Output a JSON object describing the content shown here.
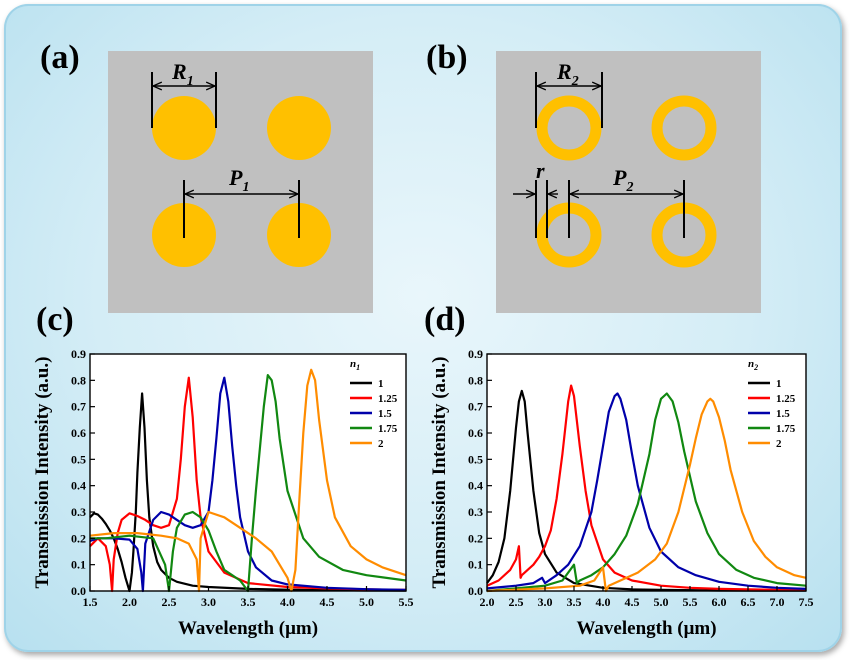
{
  "panels": {
    "a": {
      "label": "(a)",
      "radius_label": "R",
      "radius_sub": "1",
      "period_label": "P",
      "period_sub": "1"
    },
    "b": {
      "label": "(b)",
      "radius_label": "R",
      "radius_sub": "2",
      "period_label": "P",
      "period_sub": "2",
      "width_label": "r"
    },
    "c": {
      "label": "(c)"
    },
    "d": {
      "label": "(d)"
    }
  },
  "colors": {
    "substrate": "#c0c0c0",
    "metal": "#ffc000"
  },
  "chart_data": [
    {
      "id": "c",
      "type": "line",
      "xlabel": "Wavelength (μm)",
      "ylabel": "Transmission Intensity (a.u.)",
      "xlim": [
        1.5,
        5.5
      ],
      "ylim": [
        0,
        0.9
      ],
      "xticks": [
        "1.5",
        "2.0",
        "2.5",
        "3.0",
        "3.5",
        "4.0",
        "4.5",
        "5.0",
        "5.5"
      ],
      "yticks": [
        "0.0",
        "0.1",
        "0.2",
        "0.3",
        "0.4",
        "0.5",
        "0.6",
        "0.7",
        "0.8",
        "0.9"
      ],
      "legend_title": "n",
      "legend_title_sub": "1",
      "legend_position": "top-right",
      "series": [
        {
          "name": "1",
          "color": "#000000",
          "x": [
            1.5,
            1.55,
            1.6,
            1.65,
            1.7,
            1.75,
            1.8,
            1.85,
            1.9,
            1.95,
            2.0,
            2.03,
            2.05,
            2.08,
            2.1,
            2.13,
            2.16,
            2.19,
            2.22,
            2.25,
            2.3,
            2.35,
            2.4,
            2.5,
            2.6,
            2.8,
            3.0,
            3.5,
            4.0,
            4.5,
            5.0,
            5.5
          ],
          "y": [
            0.28,
            0.295,
            0.29,
            0.275,
            0.255,
            0.23,
            0.2,
            0.16,
            0.11,
            0.05,
            0.0,
            0.07,
            0.15,
            0.3,
            0.45,
            0.62,
            0.75,
            0.62,
            0.42,
            0.28,
            0.17,
            0.11,
            0.08,
            0.05,
            0.035,
            0.02,
            0.015,
            0.008,
            0.005,
            0.003,
            0.002,
            0.001
          ]
        },
        {
          "name": "1.25",
          "color": "#ff0000",
          "x": [
            1.5,
            1.6,
            1.7,
            1.75,
            1.78,
            1.8,
            1.85,
            1.9,
            2.0,
            2.1,
            2.2,
            2.3,
            2.4,
            2.5,
            2.6,
            2.65,
            2.7,
            2.75,
            2.8,
            2.85,
            2.9,
            3.0,
            3.2,
            3.5,
            4.0,
            4.5,
            5.0,
            5.5
          ],
          "y": [
            0.17,
            0.2,
            0.17,
            0.1,
            0.0,
            0.12,
            0.22,
            0.27,
            0.295,
            0.285,
            0.27,
            0.25,
            0.24,
            0.25,
            0.35,
            0.5,
            0.7,
            0.81,
            0.66,
            0.42,
            0.28,
            0.15,
            0.07,
            0.03,
            0.015,
            0.01,
            0.006,
            0.004
          ]
        },
        {
          "name": "1.5",
          "color": "#0000aa",
          "x": [
            1.5,
            1.6,
            1.8,
            2.0,
            2.1,
            2.15,
            2.17,
            2.2,
            2.3,
            2.4,
            2.5,
            2.6,
            2.7,
            2.8,
            2.9,
            3.0,
            3.05,
            3.1,
            3.15,
            3.2,
            3.25,
            3.3,
            3.35,
            3.4,
            3.5,
            3.6,
            3.8,
            4.0,
            4.5,
            5.0,
            5.5
          ],
          "y": [
            0.19,
            0.2,
            0.2,
            0.195,
            0.16,
            0.07,
            0.0,
            0.18,
            0.27,
            0.3,
            0.29,
            0.27,
            0.25,
            0.24,
            0.25,
            0.3,
            0.42,
            0.58,
            0.75,
            0.81,
            0.72,
            0.55,
            0.4,
            0.28,
            0.15,
            0.09,
            0.04,
            0.025,
            0.012,
            0.007,
            0.004
          ]
        },
        {
          "name": "1.75",
          "color": "#118811",
          "x": [
            1.5,
            1.7,
            2.0,
            2.3,
            2.45,
            2.5,
            2.55,
            2.6,
            2.7,
            2.8,
            2.9,
            3.0,
            3.1,
            3.2,
            3.3,
            3.4,
            3.5,
            3.55,
            3.6,
            3.7,
            3.75,
            3.8,
            3.85,
            3.9,
            4.0,
            4.2,
            4.4,
            4.7,
            5.0,
            5.5
          ],
          "y": [
            0.2,
            0.2,
            0.21,
            0.2,
            0.1,
            0.0,
            0.15,
            0.24,
            0.29,
            0.3,
            0.28,
            0.23,
            0.15,
            0.08,
            0.06,
            0.04,
            0.0,
            0.2,
            0.38,
            0.7,
            0.82,
            0.8,
            0.72,
            0.58,
            0.38,
            0.2,
            0.13,
            0.08,
            0.06,
            0.04
          ]
        },
        {
          "name": "2",
          "color": "#ff8c00",
          "x": [
            1.5,
            1.8,
            2.1,
            2.4,
            2.6,
            2.75,
            2.85,
            2.88,
            2.9,
            3.0,
            3.2,
            3.4,
            3.6,
            3.8,
            3.9,
            4.0,
            4.05,
            4.1,
            4.15,
            4.2,
            4.25,
            4.3,
            4.35,
            4.4,
            4.5,
            4.6,
            4.8,
            5.0,
            5.2,
            5.5
          ],
          "y": [
            0.21,
            0.22,
            0.22,
            0.21,
            0.2,
            0.18,
            0.12,
            0.0,
            0.2,
            0.3,
            0.28,
            0.24,
            0.2,
            0.15,
            0.1,
            0.05,
            0.0,
            0.08,
            0.35,
            0.6,
            0.78,
            0.84,
            0.8,
            0.65,
            0.42,
            0.28,
            0.17,
            0.12,
            0.09,
            0.06
          ]
        }
      ]
    },
    {
      "id": "d",
      "type": "line",
      "xlabel": "Wavelength (μm)",
      "ylabel": "Transmission Intensity (a.u.)",
      "xlim": [
        2.0,
        7.5
      ],
      "ylim": [
        0,
        0.9
      ],
      "xticks": [
        "2.0",
        "2.5",
        "3.0",
        "3.5",
        "4.0",
        "4.5",
        "5.0",
        "5.5",
        "6.0",
        "6.5",
        "7.0",
        "7.5"
      ],
      "yticks": [
        "0.0",
        "0.1",
        "0.2",
        "0.3",
        "0.4",
        "0.5",
        "0.6",
        "0.7",
        "0.8",
        "0.9"
      ],
      "legend_title": "n",
      "legend_title_sub": "2",
      "legend_position": "top-right",
      "series": [
        {
          "name": "1",
          "color": "#000000",
          "x": [
            2.0,
            2.1,
            2.2,
            2.3,
            2.4,
            2.5,
            2.55,
            2.6,
            2.65,
            2.7,
            2.8,
            2.9,
            3.0,
            3.2,
            3.5,
            4.0,
            4.5,
            5.0,
            6.0,
            7.0,
            7.5
          ],
          "y": [
            0.03,
            0.06,
            0.11,
            0.2,
            0.38,
            0.62,
            0.72,
            0.76,
            0.72,
            0.6,
            0.38,
            0.22,
            0.14,
            0.07,
            0.03,
            0.012,
            0.006,
            0.004,
            0.002,
            0.001,
            0.001
          ]
        },
        {
          "name": "1.25",
          "color": "#ff0000",
          "x": [
            2.0,
            2.2,
            2.4,
            2.5,
            2.55,
            2.58,
            2.6,
            2.7,
            2.8,
            2.9,
            3.0,
            3.1,
            3.2,
            3.3,
            3.4,
            3.45,
            3.5,
            3.6,
            3.7,
            3.8,
            4.0,
            4.2,
            4.5,
            5.0,
            5.5,
            6.0,
            7.0,
            7.5
          ],
          "y": [
            0.02,
            0.04,
            0.08,
            0.12,
            0.17,
            0.05,
            0.06,
            0.08,
            0.1,
            0.13,
            0.17,
            0.23,
            0.35,
            0.52,
            0.72,
            0.78,
            0.74,
            0.55,
            0.38,
            0.25,
            0.12,
            0.07,
            0.04,
            0.02,
            0.012,
            0.008,
            0.004,
            0.003
          ]
        },
        {
          "name": "1.5",
          "color": "#0000aa",
          "x": [
            2.0,
            2.5,
            2.8,
            2.95,
            3.0,
            3.2,
            3.4,
            3.6,
            3.8,
            3.9,
            4.0,
            4.1,
            4.2,
            4.25,
            4.3,
            4.4,
            4.5,
            4.6,
            4.8,
            5.0,
            5.3,
            5.6,
            6.0,
            6.5,
            7.0,
            7.5
          ],
          "y": [
            0.01,
            0.02,
            0.03,
            0.05,
            0.03,
            0.06,
            0.1,
            0.17,
            0.3,
            0.42,
            0.55,
            0.68,
            0.74,
            0.75,
            0.73,
            0.65,
            0.52,
            0.4,
            0.24,
            0.15,
            0.09,
            0.06,
            0.035,
            0.02,
            0.012,
            0.008
          ]
        },
        {
          "name": "1.75",
          "color": "#118811",
          "x": [
            2.0,
            2.5,
            3.0,
            3.3,
            3.5,
            3.55,
            3.6,
            3.8,
            4.0,
            4.2,
            4.4,
            4.6,
            4.8,
            4.9,
            5.0,
            5.1,
            5.2,
            5.3,
            5.4,
            5.6,
            5.8,
            6.0,
            6.3,
            6.6,
            7.0,
            7.5
          ],
          "y": [
            0.0,
            0.01,
            0.02,
            0.04,
            0.1,
            0.03,
            0.04,
            0.06,
            0.09,
            0.14,
            0.21,
            0.33,
            0.52,
            0.65,
            0.73,
            0.75,
            0.72,
            0.64,
            0.53,
            0.34,
            0.22,
            0.14,
            0.08,
            0.05,
            0.03,
            0.02
          ]
        },
        {
          "name": "2",
          "color": "#ff8c00",
          "x": [
            2.0,
            3.0,
            3.6,
            3.85,
            4.0,
            4.05,
            4.1,
            4.3,
            4.6,
            4.9,
            5.1,
            5.3,
            5.5,
            5.6,
            5.7,
            5.8,
            5.85,
            5.9,
            6.0,
            6.1,
            6.2,
            6.4,
            6.6,
            6.8,
            7.0,
            7.3,
            7.5
          ],
          "y": [
            0.0,
            0.01,
            0.02,
            0.04,
            0.09,
            0.0,
            0.02,
            0.04,
            0.07,
            0.12,
            0.18,
            0.3,
            0.48,
            0.58,
            0.67,
            0.72,
            0.73,
            0.72,
            0.66,
            0.57,
            0.46,
            0.3,
            0.19,
            0.13,
            0.09,
            0.06,
            0.05
          ]
        }
      ]
    }
  ]
}
